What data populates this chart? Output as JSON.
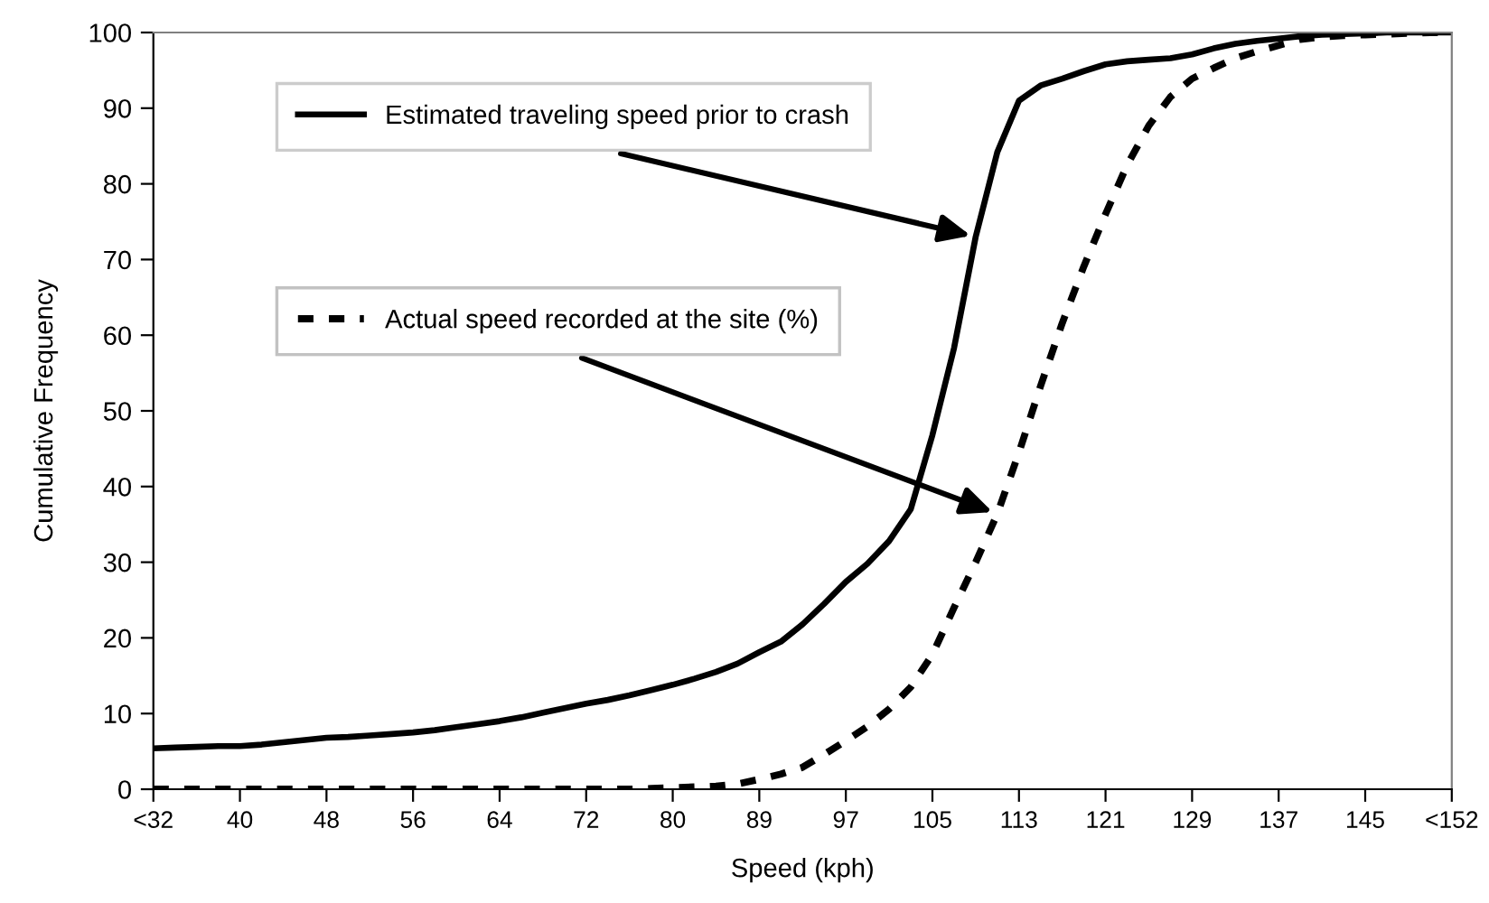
{
  "chart_data": {
    "type": "line",
    "xlabel": "Speed (kph)",
    "ylabel": "Cumulative Frequency",
    "categories": [
      "<32",
      null,
      null,
      null,
      "40",
      null,
      null,
      null,
      "48",
      null,
      null,
      null,
      "56",
      null,
      null,
      null,
      "64",
      null,
      null,
      null,
      "72",
      null,
      null,
      null,
      "80",
      null,
      null,
      null,
      "89",
      null,
      null,
      null,
      "97",
      null,
      null,
      null,
      "105",
      null,
      null,
      null,
      "113",
      null,
      null,
      null,
      "121",
      null,
      null,
      null,
      "129",
      null,
      null,
      null,
      "137",
      null,
      null,
      null,
      "145",
      null,
      null,
      null,
      "<152"
    ],
    "series": [
      {
        "name": "Estimated traveling speed prior to crash",
        "color": "#000000",
        "line_style": "solid",
        "values": [
          5.4,
          5.5,
          5.6,
          5.7,
          5.7,
          5.9,
          6.2,
          6.5,
          6.8,
          6.9,
          7.1,
          7.3,
          7.5,
          7.8,
          8.2,
          8.6,
          9.0,
          9.5,
          10.1,
          10.7,
          11.3,
          11.8,
          12.4,
          13.1,
          13.8,
          14.6,
          15.5,
          16.6,
          18.1,
          19.5,
          21.8,
          24.5,
          27.4,
          29.8,
          32.8,
          37,
          46.8,
          58.3,
          73,
          84.2,
          91,
          93,
          93.9,
          94.9,
          95.8,
          96.2,
          96.4,
          96.6,
          97.1,
          97.9,
          98.5,
          98.9,
          99.2,
          99.5,
          99.7,
          99.8,
          99.9,
          100,
          100,
          100,
          100
        ]
      },
      {
        "name": "Actual speed recorded at the site (%)",
        "color": "#000000",
        "line_style": "dashed",
        "values": [
          0,
          0,
          0,
          0,
          0,
          0,
          0,
          0,
          0,
          0,
          0,
          0,
          0,
          0,
          0,
          0,
          0,
          0,
          0,
          0,
          0,
          0,
          0,
          0.1,
          0.2,
          0.3,
          0.4,
          0.7,
          1.3,
          2.0,
          2.9,
          4.6,
          6.4,
          8.3,
          10.6,
          13.5,
          17.8,
          24,
          30,
          36.4,
          44.5,
          53.3,
          61.6,
          69.1,
          76,
          82.5,
          87.7,
          91.5,
          93.9,
          95.3,
          96.6,
          97.5,
          98.3,
          99.1,
          99.4,
          99.6,
          99.7,
          99.8,
          99.9,
          100,
          100
        ]
      }
    ],
    "ylim": [
      0,
      100
    ],
    "yticks": [
      0,
      10,
      20,
      30,
      40,
      50,
      60,
      70,
      80,
      90,
      100
    ],
    "grid": false,
    "legend": "top left",
    "marker": "none"
  }
}
